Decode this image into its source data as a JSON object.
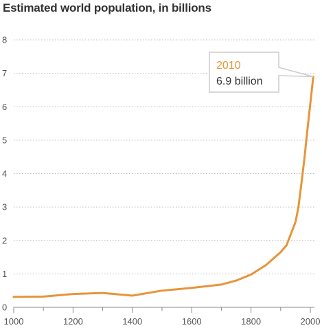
{
  "chart_data": {
    "type": "line",
    "title": "Estimated world population, in billions",
    "xlabel": "",
    "ylabel": "",
    "xlim": [
      1000,
      2010
    ],
    "ylim": [
      0,
      8
    ],
    "x_ticks": [
      1000,
      1200,
      1400,
      1600,
      1800,
      2000
    ],
    "y_ticks": [
      0,
      1,
      2,
      3,
      4,
      5,
      6,
      7,
      8
    ],
    "grid": "horizontal-dotted",
    "series": [
      {
        "color": "#e8943a",
        "x": [
          1000,
          1100,
          1200,
          1300,
          1400,
          1500,
          1600,
          1700,
          1750,
          1800,
          1850,
          1900,
          1920,
          1950,
          1960,
          1970,
          1980,
          1990,
          2000,
          2010
        ],
        "values": [
          0.31,
          0.32,
          0.4,
          0.43,
          0.35,
          0.5,
          0.58,
          0.68,
          0.8,
          0.98,
          1.26,
          1.65,
          1.86,
          2.55,
          3.0,
          3.7,
          4.45,
          5.3,
          6.1,
          6.9
        ]
      }
    ],
    "annotation": {
      "year": "2010",
      "value": "6.9 billion",
      "x": 2010,
      "y": 6.9
    }
  },
  "colors": {
    "line": "#e8943a",
    "year_text": "#e8943a",
    "value_text": "#333333",
    "grid": "#bbbbbb",
    "axis": "#888888",
    "callout_border": "#cccccc"
  }
}
